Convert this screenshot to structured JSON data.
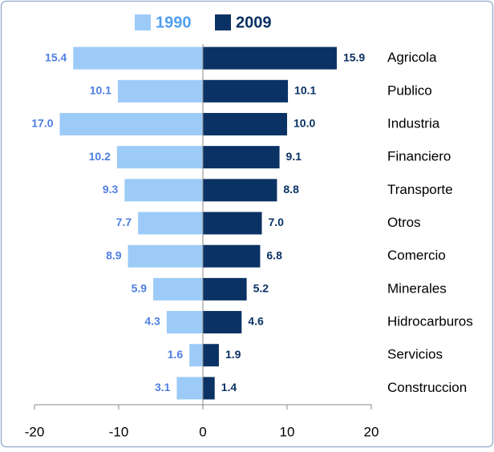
{
  "chart_data": {
    "type": "butterfly",
    "categories": [
      "Agricola",
      "Publico",
      "Industria",
      "Financiero",
      "Transporte",
      "Otros",
      "Comercio",
      "Minerales",
      "Hidrocarburos",
      "Servicios",
      "Construccion"
    ],
    "series": [
      {
        "name": "1990",
        "color": "#9dcbf7",
        "label_color": "#4f7fe3",
        "values": [
          -15.4,
          -10.1,
          -17.0,
          -10.2,
          -9.3,
          -7.7,
          -8.9,
          -5.9,
          -4.3,
          -1.6,
          -3.1
        ],
        "value_labels": [
          "15.4",
          "10.1",
          "17.0",
          "10.2",
          "9.3",
          "7.7",
          "8.9",
          "5.9",
          "4.3",
          "1.6",
          "3.1"
        ]
      },
      {
        "name": "2009",
        "color": "#0b3264",
        "label_color": "#0b3264",
        "values": [
          15.9,
          10.1,
          10.0,
          9.1,
          8.8,
          7.0,
          6.8,
          5.2,
          4.6,
          1.9,
          1.4
        ],
        "value_labels": [
          "15.9",
          "10.1",
          "10.0",
          "9.1",
          "8.8",
          "7.0",
          "6.8",
          "5.2",
          "4.6",
          "1.9",
          "1.4"
        ]
      }
    ],
    "xlim": [
      -20,
      20
    ],
    "xticks": [
      -20,
      -10,
      0,
      10,
      20
    ]
  }
}
